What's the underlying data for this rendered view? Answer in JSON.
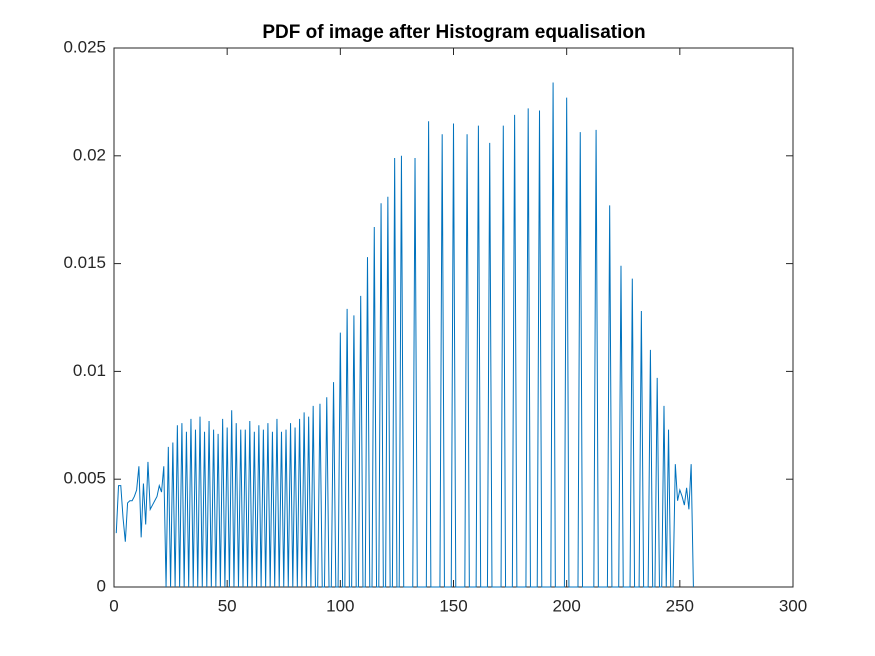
{
  "chart_data": {
    "type": "line",
    "title": "PDF of image after Histogram equalisation",
    "color": "#0072bd",
    "xlim": [
      0,
      300
    ],
    "xticks": [
      0,
      50,
      100,
      150,
      200,
      250,
      300
    ],
    "ylim": [
      0,
      0.025
    ],
    "yticks": [
      0,
      0.005,
      0.01,
      0.015,
      0.02,
      0.025
    ],
    "x": [
      1,
      2,
      3,
      4,
      5,
      6,
      7,
      8,
      9,
      10,
      11,
      12,
      13,
      14,
      15,
      16,
      17,
      18,
      19,
      20,
      21,
      22,
      23,
      24,
      25,
      26,
      27,
      28,
      29,
      30,
      31,
      32,
      33,
      34,
      35,
      36,
      37,
      38,
      39,
      40,
      41,
      42,
      43,
      44,
      45,
      46,
      47,
      48,
      49,
      50,
      51,
      52,
      53,
      54,
      55,
      56,
      57,
      58,
      59,
      60,
      61,
      62,
      63,
      64,
      65,
      66,
      67,
      68,
      69,
      70,
      71,
      72,
      73,
      74,
      75,
      76,
      77,
      78,
      79,
      80,
      81,
      82,
      83,
      84,
      85,
      86,
      87,
      88,
      89,
      90,
      91,
      92,
      93,
      94,
      95,
      96,
      97,
      98,
      99,
      100,
      101,
      102,
      103,
      104,
      105,
      106,
      107,
      108,
      109,
      110,
      111,
      112,
      113,
      114,
      115,
      116,
      117,
      118,
      119,
      120,
      121,
      122,
      123,
      124,
      125,
      126,
      127,
      128,
      129,
      130,
      131,
      132,
      133,
      134,
      135,
      136,
      137,
      138,
      139,
      140,
      141,
      142,
      143,
      144,
      145,
      146,
      147,
      148,
      149,
      150,
      151,
      152,
      153,
      154,
      155,
      156,
      157,
      158,
      159,
      160,
      161,
      162,
      163,
      164,
      165,
      166,
      167,
      168,
      169,
      170,
      171,
      172,
      173,
      174,
      175,
      176,
      177,
      178,
      179,
      180,
      181,
      182,
      183,
      184,
      185,
      186,
      187,
      188,
      189,
      190,
      191,
      192,
      193,
      194,
      195,
      196,
      197,
      198,
      199,
      200,
      201,
      202,
      203,
      204,
      205,
      206,
      207,
      208,
      209,
      210,
      211,
      212,
      213,
      214,
      215,
      216,
      217,
      218,
      219,
      220,
      221,
      222,
      223,
      224,
      225,
      226,
      227,
      228,
      229,
      230,
      231,
      232,
      233,
      234,
      235,
      236,
      237,
      238,
      239,
      240,
      241,
      242,
      243,
      244,
      245,
      246,
      247,
      248,
      249,
      250,
      251,
      252,
      253,
      254,
      255,
      256
    ],
    "values": [
      0.0025,
      0.0047,
      0.0047,
      0.0032,
      0.0021,
      0.0039,
      0.004,
      0.004,
      0.0042,
      0.0045,
      0.0056,
      0.0023,
      0.0048,
      0.0029,
      0.0058,
      0.0036,
      0.0038,
      0.004,
      0.0042,
      0.0047,
      0.0044,
      0.0056,
      0,
      0.0065,
      0,
      0.0067,
      0,
      0.0075,
      0,
      0.0076,
      0,
      0.0072,
      0,
      0.0078,
      0,
      0.0073,
      0,
      0.0079,
      0,
      0.0072,
      0,
      0.0077,
      0,
      0.0073,
      0,
      0.0071,
      0,
      0.0078,
      0,
      0.0074,
      0,
      0.0082,
      0,
      0.0076,
      0,
      0.0073,
      0,
      0.0073,
      0,
      0.0077,
      0,
      0.0072,
      0,
      0.0075,
      0,
      0.0073,
      0,
      0.0076,
      0,
      0.0072,
      0,
      0.0078,
      0,
      0.0072,
      0,
      0.0073,
      0,
      0.0076,
      0,
      0.0074,
      0,
      0.0078,
      0,
      0.0081,
      0,
      0.0079,
      0,
      0.0084,
      0,
      0,
      0.0085,
      0,
      0,
      0.0088,
      0,
      0,
      0.0095,
      0,
      0,
      0.0118,
      0,
      0,
      0.0129,
      0,
      0,
      0.0126,
      0,
      0,
      0.0135,
      0,
      0,
      0.0153,
      0,
      0,
      0.0167,
      0,
      0,
      0.0178,
      0,
      0,
      0.0181,
      0,
      0,
      0.0199,
      0,
      0,
      0.02,
      0,
      0,
      0,
      0,
      0,
      0.0199,
      0,
      0,
      0,
      0,
      0,
      0.0216,
      0,
      0,
      0,
      0,
      0,
      0.021,
      0,
      0,
      0,
      0,
      0.0215,
      0,
      0,
      0,
      0,
      0,
      0.021,
      0,
      0,
      0,
      0,
      0.0214,
      0,
      0,
      0,
      0,
      0.0206,
      0,
      0,
      0,
      0,
      0,
      0.0214,
      0,
      0,
      0,
      0,
      0.0219,
      0,
      0,
      0,
      0,
      0,
      0.0222,
      0,
      0,
      0,
      0,
      0.0221,
      0,
      0,
      0,
      0,
      0,
      0.0234,
      0,
      0,
      0,
      0,
      0,
      0.0227,
      0,
      0,
      0,
      0,
      0,
      0.0211,
      0,
      0,
      0,
      0,
      0,
      0,
      0.0212,
      0,
      0,
      0,
      0,
      0,
      0.0177,
      0,
      0,
      0,
      0,
      0.0149,
      0,
      0,
      0,
      0,
      0.0143,
      0,
      0,
      0,
      0.0128,
      0,
      0,
      0,
      0.011,
      0,
      0,
      0.0097,
      0,
      0,
      0.0084,
      0,
      0.0073,
      0,
      0,
      0.0057,
      0.004,
      0.0045,
      0.0042,
      0.0038,
      0.0046,
      0.0036,
      0.0057,
      0
    ]
  }
}
